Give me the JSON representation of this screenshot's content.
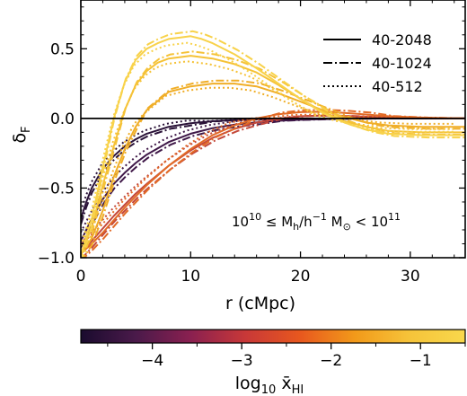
{
  "chart_data": {
    "type": "line",
    "xlabel": "r (cMpc)",
    "ylabel": "δ",
    "ylabel_sub": "F",
    "xlim": [
      0,
      35
    ],
    "ylim": [
      -1.0,
      0.85
    ],
    "xticks": [
      0,
      10,
      20,
      30
    ],
    "xtick_labels": [
      "0",
      "10",
      "20",
      "30"
    ],
    "yticks": [
      -1.0,
      -0.5,
      0.0,
      0.5
    ],
    "ytick_labels": [
      "−1.0",
      "−0.5",
      "0.0",
      "0.5"
    ],
    "reference_line_y": 0.0,
    "legend": {
      "placement": "top-right",
      "entries": [
        {
          "label": "40-2048",
          "style": "solid"
        },
        {
          "label": "40-1024",
          "style": "dashdot"
        },
        {
          "label": "40-512",
          "style": "dotted"
        }
      ]
    },
    "annotation": {
      "prefix": "10",
      "exp_low": "10",
      "middle": " ≤ M",
      "sub_h": "h",
      "slash_h": "/h",
      "exp_minus": "−1",
      "msun": " M",
      "sun_sub": "⊙",
      "lt": " < 10",
      "exp_high": "11"
    },
    "colorbar": {
      "label_prefix": "log",
      "label_sub10": "10",
      "label_var": " x̄",
      "label_subHI": "HI",
      "range": [
        -4.8,
        -0.5
      ],
      "ticks": [
        -4,
        -3,
        -2,
        -1
      ],
      "tick_labels": [
        "−4",
        "−3",
        "−2",
        "−1"
      ],
      "colors": [
        "#1a0b2e",
        "#4a1a4a",
        "#8a2050",
        "#c83838",
        "#e8581e",
        "#f29a1a",
        "#f6c43a",
        "#f8d84c"
      ]
    },
    "series": [
      {
        "log_xhi": -4.6,
        "color": "#2a1238",
        "x": [
          0,
          0.5,
          1,
          2,
          3,
          4,
          5,
          6,
          8,
          10,
          12,
          14,
          16,
          18,
          20,
          22,
          25,
          28,
          31,
          35
        ],
        "y": [
          -0.72,
          -0.6,
          -0.5,
          -0.36,
          -0.27,
          -0.2,
          -0.15,
          -0.11,
          -0.06,
          -0.035,
          -0.02,
          -0.012,
          -0.007,
          -0.004,
          -0.002,
          -0.001,
          0,
          0,
          0,
          0
        ]
      },
      {
        "log_xhi": -4.0,
        "color": "#3f1848",
        "x": [
          0,
          0.5,
          1,
          2,
          3,
          4,
          5,
          6,
          8,
          10,
          12,
          14,
          16,
          18,
          20,
          22,
          25,
          28,
          31,
          35
        ],
        "y": [
          -0.88,
          -0.8,
          -0.72,
          -0.58,
          -0.47,
          -0.39,
          -0.32,
          -0.26,
          -0.17,
          -0.11,
          -0.07,
          -0.045,
          -0.028,
          -0.017,
          -0.01,
          -0.006,
          -0.002,
          0,
          0,
          0
        ]
      },
      {
        "log_xhi": -2.4,
        "color": "#c4483a",
        "x": [
          0,
          1,
          2,
          3,
          4,
          5,
          6,
          8,
          10,
          12,
          14,
          16,
          18,
          20,
          22,
          24,
          26,
          28,
          31,
          35
        ],
        "y": [
          -0.96,
          -0.88,
          -0.79,
          -0.7,
          -0.62,
          -0.54,
          -0.47,
          -0.34,
          -0.23,
          -0.14,
          -0.075,
          -0.03,
          -0.002,
          0.015,
          0.02,
          0.018,
          0.012,
          0.007,
          0.002,
          0
        ]
      },
      {
        "log_xhi": -1.9,
        "color": "#e26a26",
        "x": [
          0,
          1,
          2,
          3,
          4,
          5,
          6,
          8,
          10,
          12,
          14,
          16,
          18,
          20,
          22,
          24,
          26,
          28,
          31,
          35
        ],
        "y": [
          -0.97,
          -0.9,
          -0.82,
          -0.73,
          -0.64,
          -0.56,
          -0.48,
          -0.34,
          -0.22,
          -0.12,
          -0.05,
          0.0,
          0.03,
          0.045,
          0.048,
          0.04,
          0.028,
          0.016,
          0.006,
          0
        ]
      },
      {
        "log_xhi": -1.3,
        "color": "#f0ae28",
        "x": [
          0,
          1,
          2,
          3,
          4,
          5,
          6,
          8,
          10,
          12,
          14,
          16,
          18,
          20,
          22,
          24,
          26,
          28,
          31,
          35
        ],
        "y": [
          -0.98,
          -0.86,
          -0.66,
          -0.42,
          -0.22,
          -0.06,
          0.06,
          0.19,
          0.23,
          0.25,
          0.25,
          0.23,
          0.18,
          0.12,
          0.06,
          0.01,
          -0.03,
          -0.05,
          -0.06,
          -0.06
        ]
      },
      {
        "log_xhi": -0.95,
        "color": "#f5c237",
        "x": [
          0,
          1,
          2,
          3,
          4,
          5,
          6,
          7,
          8,
          10,
          12,
          14,
          16,
          18,
          20,
          22,
          24,
          26,
          28,
          31,
          35
        ],
        "y": [
          -0.98,
          -0.78,
          -0.48,
          -0.2,
          0.06,
          0.24,
          0.34,
          0.4,
          0.43,
          0.45,
          0.43,
          0.39,
          0.33,
          0.24,
          0.14,
          0.05,
          -0.02,
          -0.06,
          -0.09,
          -0.1,
          -0.1
        ]
      },
      {
        "log_xhi": -0.7,
        "color": "#f8d24a",
        "x": [
          0,
          1,
          2,
          3,
          4,
          5,
          6,
          7,
          8,
          9,
          10,
          11,
          12,
          14,
          16,
          18,
          20,
          22,
          24,
          26,
          28,
          31,
          35
        ],
        "y": [
          -0.98,
          -0.72,
          -0.35,
          0.0,
          0.26,
          0.42,
          0.5,
          0.54,
          0.57,
          0.58,
          0.59,
          0.57,
          0.54,
          0.46,
          0.36,
          0.25,
          0.14,
          0.04,
          -0.03,
          -0.08,
          -0.11,
          -0.12,
          -0.12
        ]
      }
    ]
  }
}
